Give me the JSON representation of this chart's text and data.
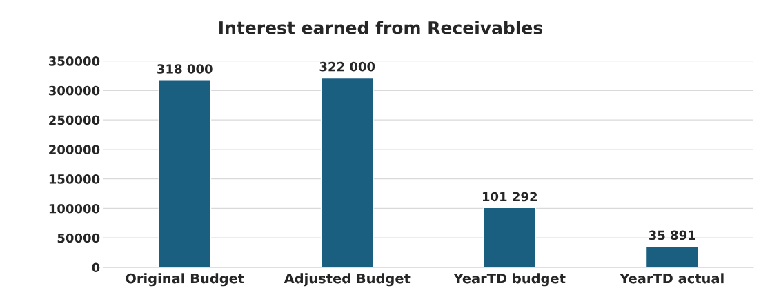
{
  "chart_data": {
    "type": "bar",
    "title": "Interest earned from Receivables",
    "categories": [
      "Original Budget",
      "Adjusted Budget",
      "YearTD budget",
      "YearTD actual"
    ],
    "values": [
      318000,
      322000,
      101292,
      35891
    ],
    "value_labels": [
      "318 000",
      "322 000",
      "101 292",
      "35 891"
    ],
    "color": "#1a5e80",
    "ylim": [
      0,
      350000
    ],
    "yticks": [
      0,
      50000,
      100000,
      150000,
      200000,
      250000,
      300000,
      350000
    ],
    "grid": "y",
    "legend": false
  }
}
